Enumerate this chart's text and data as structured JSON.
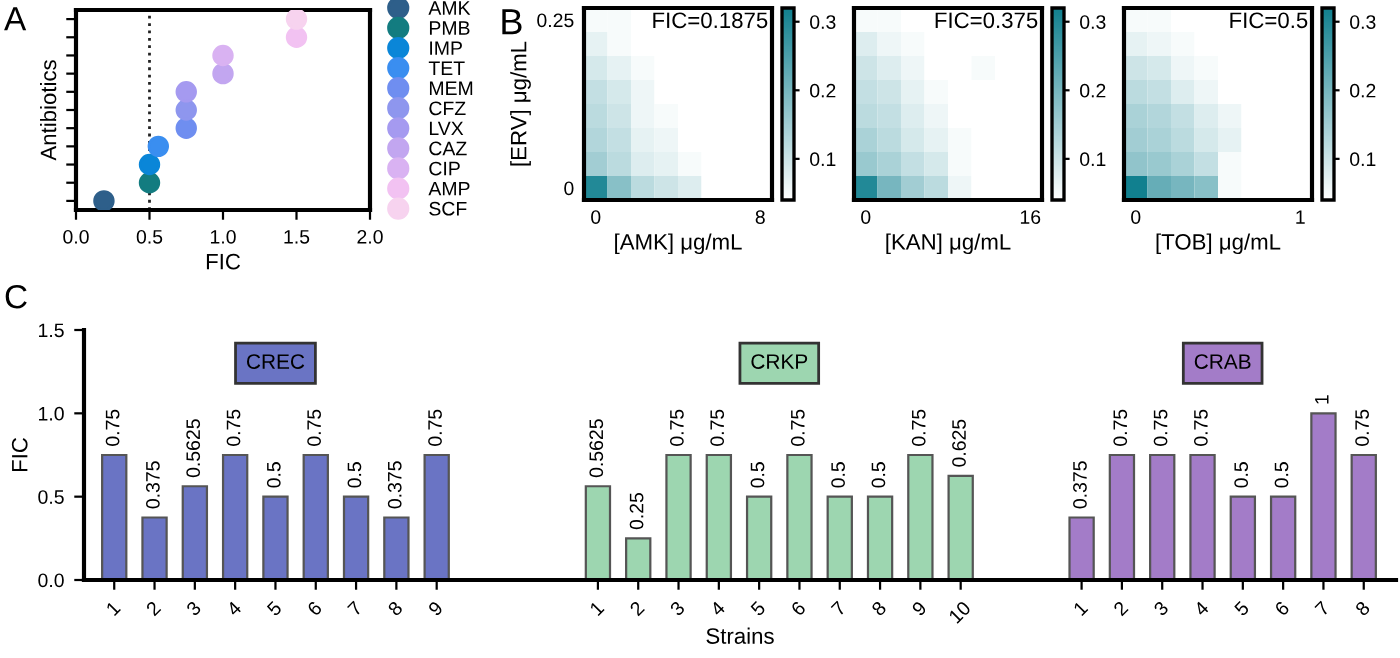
{
  "chart_data": [
    {
      "type": "scatter",
      "orientation": "horizontal",
      "title": "A",
      "xlabel": "FIC",
      "ylabel": "Antibiotics",
      "tick_labels": "x",
      "marker": "circle",
      "legend": "right",
      "categories": [
        null,
        null,
        null,
        null,
        null,
        null,
        null,
        null,
        null,
        null,
        null
      ],
      "xlim": [
        0,
        2
      ],
      "xticks": [
        {
          "value": 0,
          "label": "0.0"
        },
        {
          "value": 0.5,
          "label": "0.5"
        },
        {
          "value": 1,
          "label": "1.0"
        },
        {
          "value": 1.5,
          "label": "1.5"
        },
        {
          "value": 2,
          "label": "2.0"
        }
      ],
      "ref_lines": [
        {
          "axis": "x",
          "value": 0.5,
          "line_style": "dotted",
          "color": "#222222"
        }
      ],
      "series": [
        {
          "name": "AMK",
          "color": "#2e5f8a",
          "values": [
            null,
            null,
            null,
            null,
            null,
            null,
            null,
            null,
            null,
            null,
            0.19
          ]
        },
        {
          "name": "PMB",
          "color": "#137c80",
          "values": [
            null,
            null,
            null,
            null,
            null,
            null,
            null,
            null,
            null,
            0.5,
            null
          ]
        },
        {
          "name": "IMP",
          "color": "#0a86d8",
          "values": [
            null,
            null,
            null,
            null,
            null,
            null,
            null,
            null,
            0.5,
            null,
            null
          ]
        },
        {
          "name": "TET",
          "color": "#3a8ef0",
          "values": [
            null,
            null,
            null,
            null,
            null,
            null,
            null,
            0.56,
            null,
            null,
            null
          ]
        },
        {
          "name": "MEM",
          "color": "#6f8ef0",
          "values": [
            null,
            null,
            null,
            null,
            null,
            null,
            0.75,
            null,
            null,
            null,
            null
          ]
        },
        {
          "name": "CFZ",
          "color": "#8e96ee",
          "values": [
            null,
            null,
            null,
            null,
            null,
            0.75,
            null,
            null,
            null,
            null,
            null
          ]
        },
        {
          "name": "LVX",
          "color": "#a59af0",
          "values": [
            null,
            null,
            null,
            null,
            0.75,
            null,
            null,
            null,
            null,
            null,
            null
          ]
        },
        {
          "name": "CAZ",
          "color": "#c2a6f0",
          "values": [
            null,
            null,
            null,
            1.0,
            null,
            null,
            null,
            null,
            null,
            null,
            null
          ]
        },
        {
          "name": "CIP",
          "color": "#d9b2f2",
          "values": [
            null,
            null,
            1.0,
            null,
            null,
            null,
            null,
            null,
            null,
            null,
            null
          ]
        },
        {
          "name": "AMP",
          "color": "#f2c2f2",
          "values": [
            null,
            1.5,
            null,
            null,
            null,
            null,
            null,
            null,
            null,
            null,
            null
          ]
        },
        {
          "name": "SCF",
          "color": "#f7d3ef",
          "values": [
            1.5,
            null,
            null,
            null,
            null,
            null,
            null,
            null,
            null,
            null,
            null
          ]
        }
      ]
    },
    {
      "type": "heatmap",
      "title": "FIC=0.1875",
      "annotations": [
        "B"
      ],
      "xlabel": "[AMK] μg/mL",
      "ylabel": "[ERV] μg/mL",
      "categories": [
        "0",
        null,
        null,
        null,
        null,
        null,
        null,
        "8"
      ],
      "y_categories": [
        "0.25",
        null,
        null,
        null,
        null,
        null,
        null,
        "0"
      ],
      "clim": [
        0.04,
        0.32
      ],
      "cticks": [
        {
          "value": 0.1,
          "label": "0.1"
        },
        {
          "value": 0.2,
          "label": "0.2"
        },
        {
          "value": 0.3,
          "label": "0.3"
        }
      ],
      "cells": [
        [
          0.05,
          0.05,
          0.04,
          0.04,
          0.04,
          0.04,
          0.04,
          0.04
        ],
        [
          0.07,
          0.05,
          0.04,
          0.04,
          0.04,
          0.04,
          0.04,
          0.04
        ],
        [
          0.09,
          0.07,
          0.05,
          0.04,
          0.04,
          0.04,
          0.04,
          0.04
        ],
        [
          0.11,
          0.09,
          0.06,
          0.04,
          0.04,
          0.04,
          0.04,
          0.04
        ],
        [
          0.12,
          0.1,
          0.06,
          0.05,
          0.04,
          0.04,
          0.04,
          0.04
        ],
        [
          0.13,
          0.11,
          0.07,
          0.06,
          0.04,
          0.04,
          0.04,
          0.04
        ],
        [
          0.15,
          0.12,
          0.08,
          0.07,
          0.05,
          0.04,
          0.04,
          0.04
        ],
        [
          0.3,
          0.18,
          0.12,
          0.1,
          0.08,
          0.04,
          0.04,
          0.04
        ]
      ]
    },
    {
      "type": "heatmap",
      "title": "FIC=0.375",
      "xlabel": "[KAN] μg/mL",
      "tick_labels": "x",
      "categories": [
        "0",
        null,
        null,
        null,
        null,
        null,
        null,
        "16"
      ],
      "y_categories": [
        null,
        null,
        null,
        null,
        null,
        null,
        null,
        null
      ],
      "clim": [
        0.04,
        0.32
      ],
      "cticks": [
        {
          "value": 0.1,
          "label": "0.1"
        },
        {
          "value": 0.2,
          "label": "0.2"
        },
        {
          "value": 0.3,
          "label": "0.3"
        }
      ],
      "cells": [
        [
          0.05,
          0.05,
          0.04,
          0.04,
          0.04,
          0.04,
          0.04,
          0.04
        ],
        [
          0.08,
          0.06,
          0.05,
          0.04,
          0.04,
          0.04,
          0.04,
          0.04
        ],
        [
          0.1,
          0.08,
          0.06,
          0.04,
          0.04,
          0.05,
          0.04,
          0.04
        ],
        [
          0.11,
          0.1,
          0.07,
          0.05,
          0.04,
          0.04,
          0.04,
          0.04
        ],
        [
          0.12,
          0.11,
          0.08,
          0.06,
          0.04,
          0.04,
          0.04,
          0.04
        ],
        [
          0.14,
          0.12,
          0.09,
          0.07,
          0.05,
          0.04,
          0.04,
          0.04
        ],
        [
          0.16,
          0.14,
          0.11,
          0.09,
          0.05,
          0.04,
          0.04,
          0.04
        ],
        [
          0.3,
          0.2,
          0.15,
          0.12,
          0.06,
          0.04,
          0.04,
          0.04
        ]
      ]
    },
    {
      "type": "heatmap",
      "title": "FIC=0.5",
      "xlabel": "[TOB] μg/mL",
      "tick_labels": "x",
      "categories": [
        "0",
        null,
        null,
        null,
        null,
        null,
        null,
        "1"
      ],
      "y_categories": [
        null,
        null,
        null,
        null,
        null,
        null,
        null,
        null
      ],
      "clim": [
        0.04,
        0.32
      ],
      "cticks": [
        {
          "value": 0.1,
          "label": "0.1"
        },
        {
          "value": 0.2,
          "label": "0.2"
        },
        {
          "value": 0.3,
          "label": "0.3"
        }
      ],
      "cells": [
        [
          0.05,
          0.05,
          0.04,
          0.04,
          0.04,
          0.04,
          0.04,
          0.04
        ],
        [
          0.07,
          0.06,
          0.05,
          0.04,
          0.04,
          0.04,
          0.04,
          0.04
        ],
        [
          0.1,
          0.09,
          0.06,
          0.05,
          0.04,
          0.04,
          0.04,
          0.04
        ],
        [
          0.12,
          0.11,
          0.08,
          0.06,
          0.04,
          0.04,
          0.04,
          0.04
        ],
        [
          0.14,
          0.13,
          0.11,
          0.08,
          0.06,
          0.04,
          0.04,
          0.04
        ],
        [
          0.15,
          0.14,
          0.12,
          0.09,
          0.07,
          0.04,
          0.04,
          0.04
        ],
        [
          0.17,
          0.16,
          0.14,
          0.11,
          0.05,
          0.04,
          0.04,
          0.04
        ],
        [
          0.32,
          0.22,
          0.2,
          0.18,
          0.05,
          0.04,
          0.04,
          0.04
        ]
      ]
    },
    {
      "type": "bar",
      "title": "C",
      "xlabel": "Strains",
      "ylabel": "FIC",
      "data_labels": true,
      "annotations": [
        "CREC",
        "CRKP",
        "CRAB"
      ],
      "categories": [
        "1",
        "2",
        "3",
        "4",
        "5",
        "6",
        "7",
        "8",
        "9",
        null,
        null,
        null,
        "1",
        "2",
        "3",
        "4",
        "5",
        "6",
        "7",
        "8",
        "9",
        "10",
        null,
        null,
        "1",
        "2",
        "3",
        "4",
        "5",
        "6",
        "7",
        "8"
      ],
      "values": [
        0.75,
        0.375,
        0.5625,
        0.75,
        0.5,
        0.75,
        0.5,
        0.375,
        0.75,
        null,
        null,
        null,
        0.5625,
        0.25,
        0.75,
        0.75,
        0.5,
        0.75,
        0.5,
        0.5,
        0.75,
        0.625,
        null,
        null,
        0.375,
        0.75,
        0.75,
        0.75,
        0.5,
        0.5,
        1,
        0.75
      ],
      "colors": [
        "#6a74c4",
        "#6a74c4",
        "#6a74c4",
        "#6a74c4",
        "#6a74c4",
        "#6a74c4",
        "#6a74c4",
        "#6a74c4",
        "#6a74c4",
        null,
        null,
        null,
        "#9dd6b0",
        "#9dd6b0",
        "#9dd6b0",
        "#9dd6b0",
        "#9dd6b0",
        "#9dd6b0",
        "#9dd6b0",
        "#9dd6b0",
        "#9dd6b0",
        "#9dd6b0",
        null,
        null,
        "#a37cc8",
        "#a37cc8",
        "#a37cc8",
        "#a37cc8",
        "#a37cc8",
        "#a37cc8",
        "#a37cc8",
        "#a37cc8"
      ],
      "ylim": [
        0,
        1.5
      ],
      "yticks": [
        {
          "value": 0,
          "label": "0.0"
        },
        {
          "value": 0.5,
          "label": "0.5"
        },
        {
          "value": 1,
          "label": "1.0"
        },
        {
          "value": 1.5,
          "label": "1.5"
        }
      ]
    }
  ]
}
